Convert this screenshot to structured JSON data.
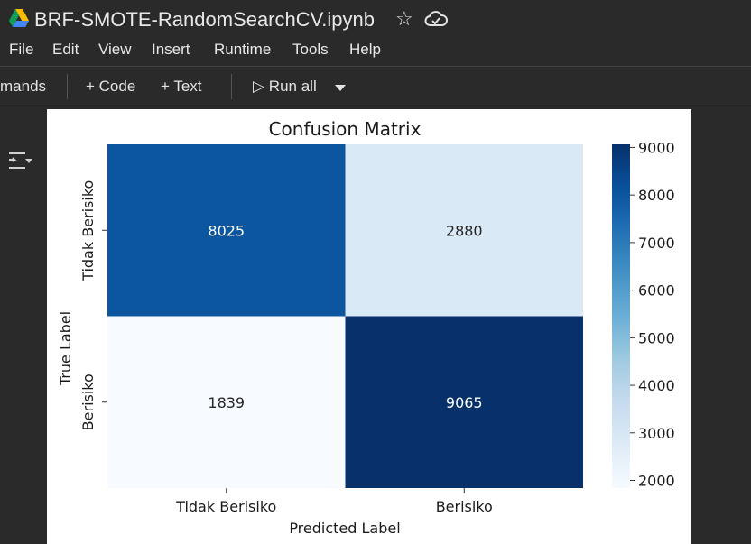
{
  "notebook": {
    "title": "BRF-SMOTE-RandomSearchCV.ipynb",
    "star_icon": "star-icon",
    "cloud_icon": "cloud-sync-icon"
  },
  "menu": [
    "File",
    "Edit",
    "View",
    "Insert",
    "Runtime",
    "Tools",
    "Help"
  ],
  "toolbar": {
    "commands": "mands",
    "code": "+ Code",
    "text": "+ Text",
    "run_all": "▷ Run all",
    "run_dropdown_icon": "caret-down-icon"
  },
  "cell": {
    "output_icon": "output-toggle-icon"
  },
  "chart_data": {
    "type": "heatmap",
    "title": "Confusion Matrix",
    "xlabel": "Predicted Label",
    "ylabel": "True Label",
    "x_categories": [
      "Tidak Berisiko",
      "Berisiko"
    ],
    "y_categories": [
      "Tidak Berisiko",
      "Berisiko"
    ],
    "values": [
      [
        8025,
        2880
      ],
      [
        1839,
        9065
      ]
    ],
    "colormap": "Blues",
    "colorbar": {
      "ticks": [
        "9000",
        "8000",
        "7000",
        "6000",
        "5000",
        "4000",
        "3000",
        "2000"
      ],
      "min": 1839,
      "max": 9065
    }
  }
}
